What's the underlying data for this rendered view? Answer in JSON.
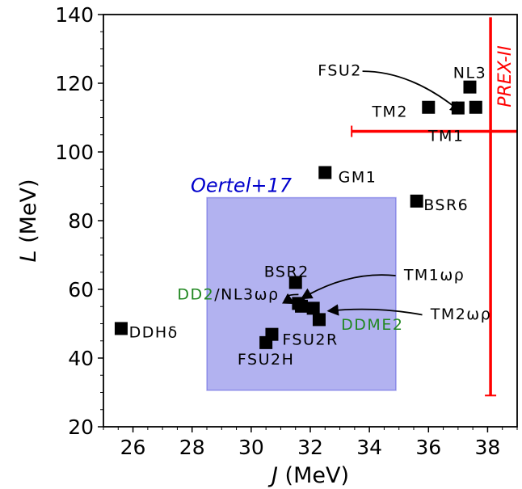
{
  "chart_data": {
    "type": "scatter",
    "xlabel": {
      "var": "J",
      "unit": " (MeV)"
    },
    "ylabel": {
      "var": "L",
      "unit": " (MeV)"
    },
    "xlim": [
      25,
      39
    ],
    "ylim": [
      20,
      140
    ],
    "xticks": [
      "26",
      "28",
      "30",
      "32",
      "34",
      "36",
      "38"
    ],
    "yticks": [
      "20",
      "40",
      "60",
      "80",
      "100",
      "120",
      "140"
    ],
    "grid": false,
    "region": {
      "label": "Oertel+17",
      "x": [
        28.5,
        34.9
      ],
      "y": [
        30.6,
        86.7
      ],
      "color": "#0000cc"
    },
    "constraint": {
      "label": "PREX-II",
      "color": "#ff0000",
      "vertical": {
        "x": 38.1,
        "y": [
          29.1,
          139.2
        ]
      },
      "horizontal": {
        "y": 106,
        "x": [
          33.4,
          39
        ]
      }
    },
    "points": [
      {
        "name": "DDHδ",
        "x": 25.6,
        "y": 48.6
      },
      {
        "name": "GM1",
        "x": 32.5,
        "y": 94.0
      },
      {
        "name": "BSR6",
        "x": 35.6,
        "y": 85.7
      },
      {
        "name": "BSR2",
        "x": 31.5,
        "y": 62.0
      },
      {
        "name": "DD2/NL3ωρ",
        "x": 31.6,
        "y": 55.9
      },
      {
        "name": "TM1ωρ",
        "x": 31.7,
        "y": 55.1
      },
      {
        "name": "DDME2",
        "x": 32.3,
        "y": 51.2
      },
      {
        "name": "TM2ωρ",
        "x": 32.1,
        "y": 54.5
      },
      {
        "name": "FSU2R",
        "x": 30.7,
        "y": 46.9
      },
      {
        "name": "FSU2H",
        "x": 30.5,
        "y": 44.5
      },
      {
        "name": "NL3",
        "x": 37.4,
        "y": 118.9
      },
      {
        "name": "FSU2",
        "x": 37.0,
        "y": 112.8
      },
      {
        "name": "TM2",
        "x": 36.0,
        "y": 113.0
      },
      {
        "name": "TM1",
        "x": 37.6,
        "y": 113.0
      }
    ],
    "marker_color": "#000000",
    "annotations": [
      {
        "text": "NL3",
        "x": 37.4,
        "y": 122.8
      },
      {
        "text": "TM2",
        "x": 34.7,
        "y": 111.5
      },
      {
        "text": "TM1",
        "x": 36.6,
        "y": 104.5
      },
      {
        "text": "GM1",
        "x": 33.6,
        "y": 92.5
      },
      {
        "text": "BSR6",
        "x": 36.6,
        "y": 84.3
      },
      {
        "text": "BSR2",
        "x": 31.2,
        "y": 65.0
      },
      {
        "text": "FSU2R",
        "x": 32.0,
        "y": 45.2
      },
      {
        "text": "FSU2H",
        "x": 30.5,
        "y": 39.4
      },
      {
        "text": "DDHδ",
        "x": 26.7,
        "y": 47.3
      },
      {
        "rich": [
          {
            "text": "DD2",
            "color": "#228822"
          },
          {
            "text": "/NL3ωρ",
            "color": "#000000"
          }
        ],
        "x": 27.5,
        "y": 58.5
      },
      {
        "text": "DDME2",
        "text_color": "#228822",
        "x": 34.1,
        "y": 49.5
      },
      {
        "text": "FSU2",
        "arrow_to": [
          37.1,
          111.6
        ],
        "x": 33.0,
        "y": 123.5
      },
      {
        "text": "TM1ωρ",
        "arrow_to": [
          31.7,
          57.3
        ],
        "x": 36.2,
        "y": 64.0
      },
      {
        "text": "TM2ωρ",
        "arrow_to": [
          32.6,
          53.7
        ],
        "x": 37.1,
        "y": 52.6
      }
    ]
  }
}
